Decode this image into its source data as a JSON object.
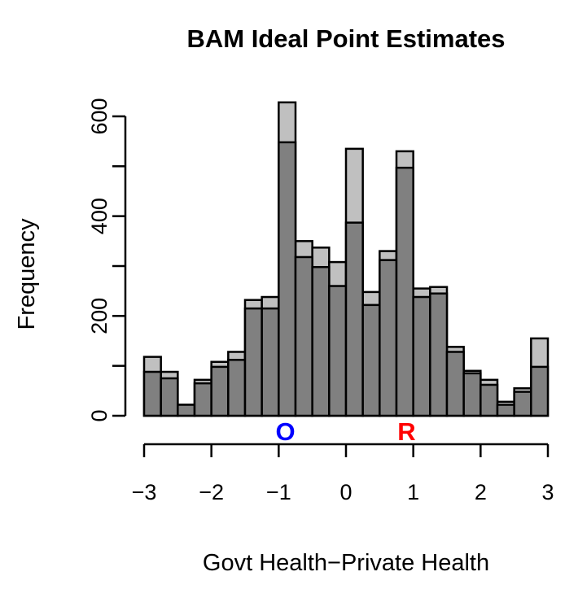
{
  "chart_data": {
    "type": "bar",
    "title": "BAM Ideal Point Estimates",
    "xlabel": "Govt Health−Private Health",
    "ylabel": "Frequency",
    "xlim": [
      -3,
      3
    ],
    "ylim": [
      0,
      630
    ],
    "x_ticks": [
      -3,
      -2,
      -1,
      0,
      1,
      2,
      3
    ],
    "x_tick_labels": [
      "−3",
      "−2",
      "−1",
      "0",
      "1",
      "2",
      "3"
    ],
    "y_ticks": [
      0,
      100,
      200,
      300,
      400,
      500,
      600
    ],
    "y_tick_labels": [
      "0",
      "200",
      "400",
      "600"
    ],
    "y_tick_labeled": [
      0,
      200,
      400,
      600
    ],
    "bin_edges": [
      -3.0,
      -2.75,
      -2.5,
      -2.25,
      -2.0,
      -1.75,
      -1.5,
      -1.25,
      -1.0,
      -0.75,
      -0.5,
      -0.25,
      0.0,
      0.25,
      0.5,
      0.75,
      1.0,
      1.25,
      1.5,
      1.75,
      2.0,
      2.25,
      2.5,
      2.75,
      3.0
    ],
    "series": [
      {
        "color": "#c0c0c0",
        "values": [
          118,
          88,
          22,
          72,
          108,
          128,
          232,
          238,
          628,
          350,
          337,
          308,
          535,
          248,
          330,
          530,
          255,
          258,
          138,
          90,
          72,
          28,
          55,
          155
        ]
      },
      {
        "color": "#808080",
        "values": [
          88,
          75,
          22,
          65,
          98,
          112,
          215,
          215,
          548,
          318,
          298,
          260,
          387,
          222,
          312,
          497,
          238,
          245,
          128,
          85,
          62,
          22,
          48,
          98
        ]
      }
    ],
    "markers": [
      {
        "label": "O",
        "x": -0.9,
        "color": "#0000ff"
      },
      {
        "label": "R",
        "x": 0.9,
        "color": "#ff0000"
      }
    ],
    "grid": false,
    "legend": "none"
  }
}
